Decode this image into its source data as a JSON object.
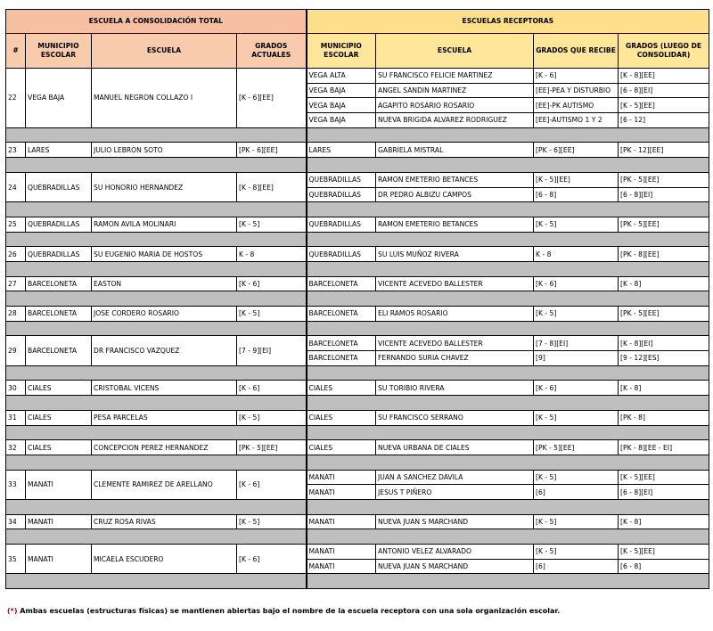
{
  "header": {
    "left": "ESCUELA A CONSOLIDACIÓN TOTAL",
    "right": "ESCUELAS RECEPTORAS"
  },
  "columns": [
    "#",
    "MUNICIPIO ESCOLAR",
    "ESCUELA",
    "GRADOS ACTUALES",
    "MUNICIPIO ESCOLAR",
    "ESCUELA",
    "GRADOS QUE RECIBE",
    "GRADOS (LUEGO DE CONSOLIDAR)"
  ],
  "rows": [
    {
      "num": 22,
      "municipio": "VEGA BAJA",
      "escuela": "MANUEL NEGRON COLLAZO I",
      "grados": "[K - 6][EE]",
      "receptoras": [
        [
          "VEGA ALTA",
          "SU FRANCISCO FELICIE MARTINEZ",
          "[K - 6]",
          "[K - 8][EE]"
        ],
        [
          "VEGA BAJA",
          "ANGEL SANDIN MARTINEZ",
          "[EE]-PEA Y DISTURBIO",
          "[6 - 8][EI]"
        ],
        [
          "VEGA BAJA",
          "AGAPITO ROSARIO ROSARIO",
          "[EE]-PK AUTISMO",
          "[K - 5][EE]"
        ],
        [
          "VEGA BAJA",
          "NUEVA BRIGIDA ALVAREZ RODRIGUEZ",
          "[EE]-AUTISMO 1 Y 2",
          "[6 - 12]"
        ]
      ]
    },
    {
      "num": 23,
      "municipio": "LARES",
      "escuela": "JULIO LEBRON SOTO",
      "grados": "[PK - 6][EE]",
      "receptoras": [
        [
          "LARES",
          "GABRIELA MISTRAL",
          "[PK - 6][EE]",
          "[PK - 12][EE]"
        ]
      ]
    },
    {
      "num": 24,
      "municipio": "QUEBRADILLAS",
      "escuela": "SU HONORIO HERNANDEZ",
      "grados": "[K - 8][EE]",
      "receptoras": [
        [
          "QUEBRADILLAS",
          "RAMON EMETERIO BETANCES",
          "[K - 5][EE]",
          "[PK - 5][EE]"
        ],
        [
          "QUEBRADILLAS",
          "DR PEDRO ALBIZU CAMPOS",
          "[6 - 8]",
          "[6 - 8][EI]"
        ]
      ]
    },
    {
      "num": 25,
      "municipio": "QUEBRADILLAS",
      "escuela": "RAMON AVILA MOLINARI",
      "grados": "[K - 5]",
      "receptoras": [
        [
          "QUEBRADILLAS",
          "RAMON EMETERIO BETANCES",
          "[K - 5]",
          "[PK - 5][EE]"
        ]
      ]
    },
    {
      "num": 26,
      "municipio": "QUEBRADILLAS",
      "escuela": "SU EUGENIO MARIA DE HOSTOS",
      "grados": "K - 8",
      "receptoras": [
        [
          "QUEBRADILLAS",
          "SU LUIS MUÑOZ RIVERA",
          "K - 8",
          "[PK - 8][EE]"
        ]
      ]
    },
    {
      "num": 27,
      "municipio": "BARCELONETA",
      "escuela": "EASTON",
      "grados": "[K - 6]",
      "receptoras": [
        [
          "BARCELONETA",
          "VICENTE ACEVEDO BALLESTER",
          "[K - 6]",
          "[K - 8]"
        ]
      ]
    },
    {
      "num": 28,
      "municipio": "BARCELONETA",
      "escuela": "JOSE CORDERO ROSARIO",
      "grados": "[K - 5]",
      "receptoras": [
        [
          "BARCELONETA",
          "ELI RAMOS ROSARIO",
          "[K - 5]",
          "[PK - 5][EE]"
        ]
      ]
    },
    {
      "num": 29,
      "municipio": "BARCELONETA",
      "escuela": "DR FRANCISCO VAZQUEZ",
      "grados": "[7 - 9][EI]",
      "receptoras": [
        [
          "BARCELONETA",
          "VICENTE ACEVEDO BALLESTER",
          "[7 - 8][EI]",
          "[K - 8][EI]"
        ],
        [
          "BARCELONETA",
          "FERNANDO SURIA CHAVEZ",
          "[9]",
          "[9 - 12][ES]"
        ]
      ]
    },
    {
      "num": 30,
      "municipio": "CIALES",
      "escuela": "CRISTOBAL VICENS",
      "grados": "[K - 6]",
      "receptoras": [
        [
          "CIALES",
          "SU TORIBIO RIVERA",
          "[K - 6]",
          "[K - 8]"
        ]
      ]
    },
    {
      "num": 31,
      "municipio": "CIALES",
      "escuela": "PESA PARCELAS",
      "grados": "[K - 5]",
      "receptoras": [
        [
          "CIALES",
          "SU FRANCISCO SERRANO",
          "[K - 5]",
          "[PK - 8]"
        ]
      ]
    },
    {
      "num": 32,
      "municipio": "CIALES",
      "escuela": "CONCEPCION PEREZ HERNANDEZ",
      "grados": "[PK - 5][EE]",
      "receptoras": [
        [
          "CIALES",
          "NUEVA URBANA DE CIALES",
          "[PK - 5][EE]",
          "[PK - 8][EE - EI]"
        ]
      ]
    },
    {
      "num": 33,
      "municipio": "MANATI",
      "escuela": "CLEMENTE RAMIREZ DE ARELLANO",
      "grados": "[K - 6]",
      "receptoras": [
        [
          "MANATI",
          "JUAN A SANCHEZ DAVILA",
          "[K - 5]",
          "[K - 5][EE]"
        ],
        [
          "MANATI",
          "JESUS T PIÑERO",
          "[6]",
          "[6 - 8][EI]"
        ]
      ]
    },
    {
      "num": 34,
      "municipio": "MANATI",
      "escuela": "CRUZ ROSA RIVAS",
      "grados": "[K - 5]",
      "receptoras": [
        [
          "MANATI",
          "NUEVA  JUAN S MARCHAND",
          "[K - 5]",
          "[K - 8]"
        ]
      ]
    },
    {
      "num": 35,
      "municipio": "MANATI",
      "escuela": "MICAELA ESCUDERO",
      "grados": "[K - 6]",
      "receptoras": [
        [
          "MANATI",
          "ANTONIO VELEZ  ALVARADO",
          "[K - 5]",
          "[K - 5][EE]"
        ],
        [
          "MANATI",
          "NUEVA  JUAN S MARCHAND",
          "[6]",
          "[6 - 8]"
        ]
      ]
    }
  ],
  "footnote": {
    "marker": "(*)",
    "text": "Ambas escuelas (estructuras físicas) se mantienen abiertas bajo el nombre de la escuela receptora con una sola organización escolar."
  }
}
